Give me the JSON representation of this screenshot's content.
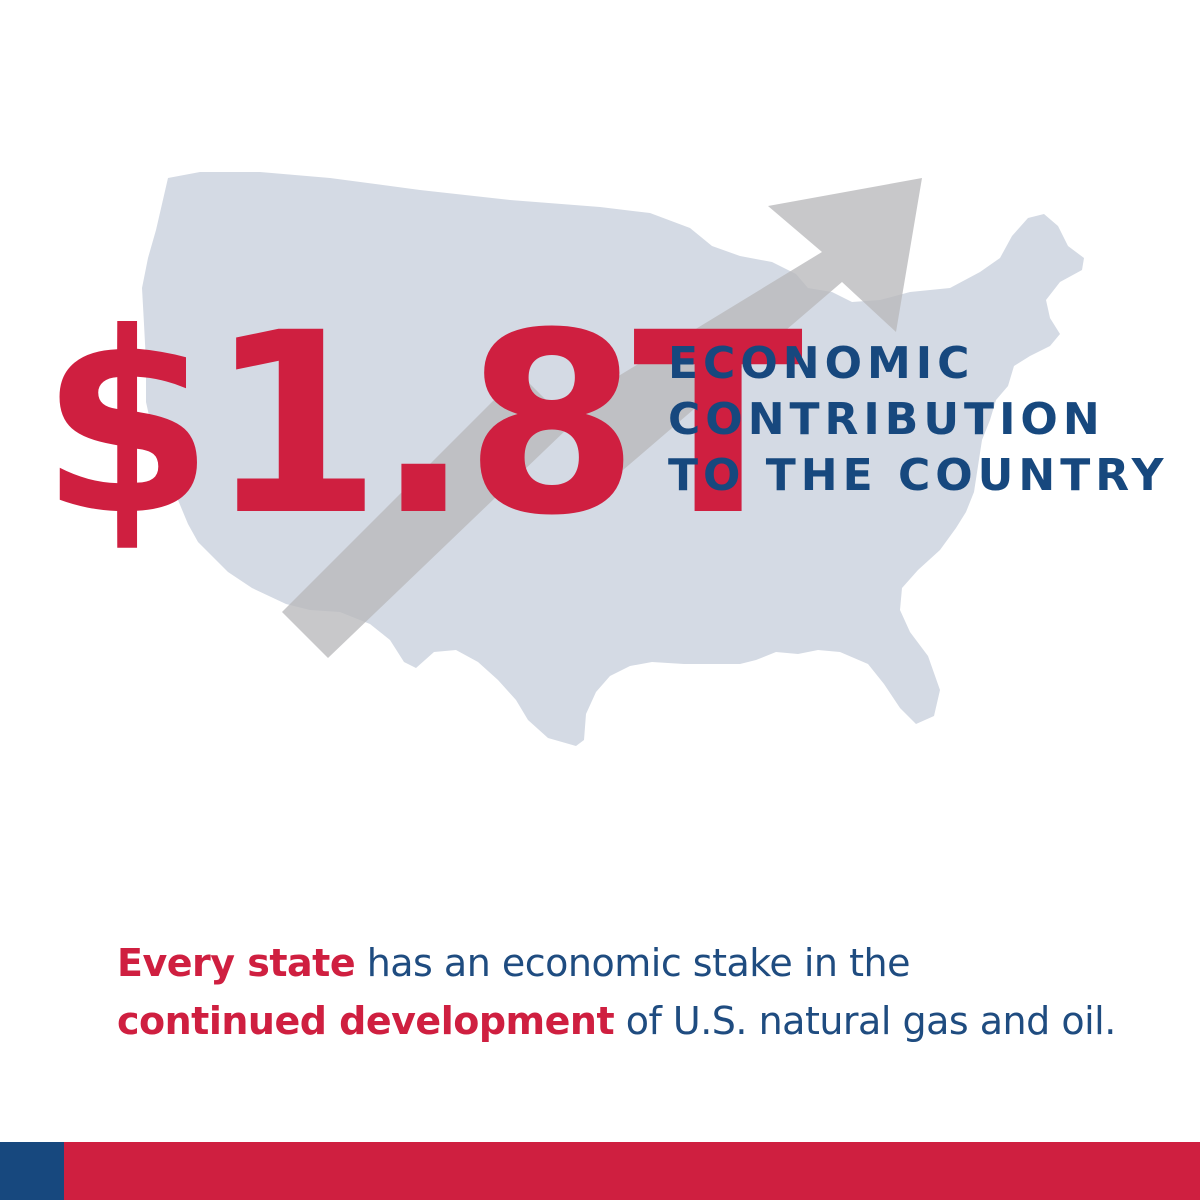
{
  "headline": {
    "value": "$1.8T",
    "caption_lines": [
      "ECONOMIC",
      "CONTRIBUTION",
      "TO THE COUNTRY"
    ]
  },
  "statement": {
    "part1_highlight": "Every state",
    "part1_rest": " has an economic stake in the",
    "part2_highlight": "continued development",
    "part2_rest": " of U.S. natural gas and oil."
  },
  "graphics": {
    "map_icon": "us-map-silhouette",
    "arrow_icon": "trend-up-arrow-icon"
  },
  "colors": {
    "accent_red": "#cf1f40",
    "brand_blue": "#17487e",
    "map_fill": "#d4dae4",
    "arrow_fill": "#b8b9bb"
  }
}
